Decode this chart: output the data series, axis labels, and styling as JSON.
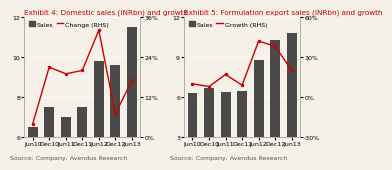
{
  "chart1": {
    "title": "Exhibit 4: Domestic sales (INRbn) and growth",
    "categories": [
      "Jun10",
      "Dec10",
      "Jun11",
      "Dec11",
      "Jun12",
      "Dec12",
      "Jun13"
    ],
    "sales": [
      6.5,
      7.5,
      7.0,
      7.5,
      9.8,
      9.6,
      11.5
    ],
    "change": [
      0.04,
      0.21,
      0.19,
      0.2,
      0.32,
      0.07,
      0.17
    ],
    "ylim_left": [
      6,
      12
    ],
    "ylim_right": [
      0.0,
      0.36
    ],
    "yticks_left": [
      6,
      8,
      10,
      12
    ],
    "yticks_right": [
      0.0,
      0.12,
      0.24,
      0.36
    ],
    "ytick_labels_right": [
      "0%",
      "12%",
      "24%",
      "36%"
    ],
    "source": "Source: Company, Avendus Research",
    "legend_sales": "Sales",
    "legend_line": "Change (RHS)"
  },
  "chart2": {
    "title": "Exhibit 5: Formulation export sales (INRbn) and growth",
    "categories": [
      "Jun10",
      "Dec10",
      "Jun11",
      "Dec11",
      "Jun12",
      "Dec12",
      "Jun13"
    ],
    "sales": [
      6.3,
      6.7,
      6.4,
      6.5,
      8.8,
      10.3,
      10.8
    ],
    "change": [
      0.1,
      0.08,
      0.17,
      0.09,
      0.42,
      0.38,
      0.2
    ],
    "ylim_left": [
      3,
      12
    ],
    "ylim_right": [
      -0.3,
      0.6
    ],
    "yticks_left": [
      3,
      6,
      9,
      12
    ],
    "yticks_right": [
      -0.3,
      0.0,
      0.3,
      0.6
    ],
    "ytick_labels_right": [
      "-30%",
      "0%",
      "30%",
      "60%"
    ],
    "source": "Source: Company, Avendus Research",
    "legend_sales": "Sales",
    "legend_line": "Growth (RHS)"
  },
  "bar_color": "#4a4a4a",
  "line_color": "#cc0000",
  "title_color": "#cc0000",
  "bg_color": "#f5f0e8",
  "grid_color": "#ffffff",
  "source_fontsize": 4.5,
  "title_fontsize": 5.2,
  "tick_fontsize": 4.5,
  "legend_fontsize": 4.5
}
